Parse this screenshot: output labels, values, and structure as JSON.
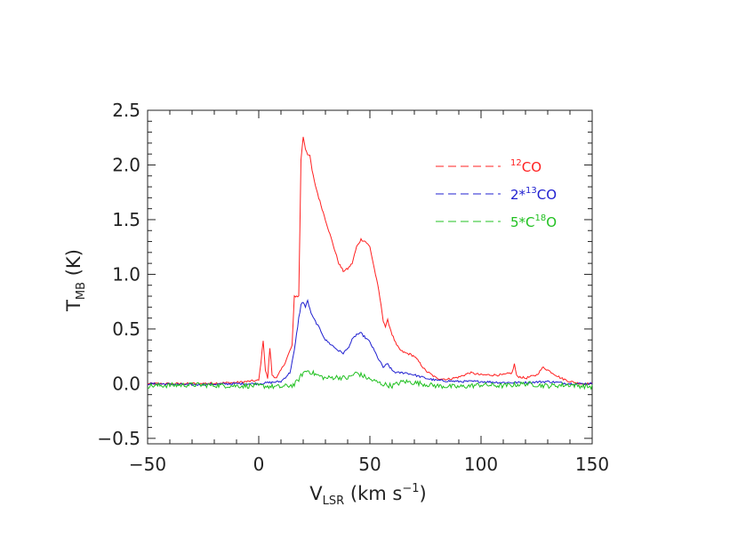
{
  "chart_data": {
    "type": "line",
    "xlabel": {
      "main": "V",
      "sub": "LSR",
      "rest": " (km s",
      "sup": "−1",
      "end": ")"
    },
    "ylabel": {
      "main": "T",
      "sub": "MB",
      "rest": " (K)"
    },
    "xlim": [
      -50,
      150
    ],
    "ylim": [
      -0.55,
      2.5
    ],
    "xticks": [
      -50,
      0,
      50,
      100,
      150
    ],
    "xtick_labels": [
      "−50",
      "0",
      "50",
      "100",
      "150"
    ],
    "yticks": [
      -0.5,
      0.0,
      0.5,
      1.0,
      1.5,
      2.0,
      2.5
    ],
    "ytick_labels": [
      "−0.5",
      "0.0",
      "0.5",
      "1.0",
      "1.5",
      "2.0",
      "2.5"
    ],
    "legend_position": "top-right",
    "series": [
      {
        "name": "12CO",
        "legend": {
          "prefix": "",
          "sup": "12",
          "text": "CO"
        },
        "color": "#ff2020",
        "x": [
          -50,
          -30,
          -10,
          0,
          1,
          2,
          3,
          4,
          5,
          6,
          8,
          12,
          15,
          16,
          17,
          18,
          19,
          20,
          21,
          22,
          23,
          24,
          25,
          27,
          30,
          33,
          36,
          38,
          40,
          42,
          44,
          46,
          48,
          50,
          52,
          54,
          56,
          57,
          58,
          60,
          62,
          64,
          66,
          68,
          70,
          72,
          75,
          80,
          85,
          90,
          95,
          100,
          105,
          110,
          114,
          115,
          116,
          118,
          120,
          125,
          128,
          132,
          136,
          140,
          145,
          150
        ],
        "y": [
          0.0,
          0.0,
          0.01,
          0.03,
          0.2,
          0.4,
          0.12,
          0.05,
          0.33,
          0.08,
          0.05,
          0.2,
          0.35,
          0.8,
          0.8,
          0.8,
          2.05,
          2.26,
          2.15,
          2.1,
          2.08,
          1.95,
          1.85,
          1.7,
          1.5,
          1.3,
          1.1,
          1.03,
          1.05,
          1.1,
          1.25,
          1.32,
          1.3,
          1.25,
          1.05,
          0.85,
          0.58,
          0.52,
          0.58,
          0.45,
          0.35,
          0.3,
          0.28,
          0.27,
          0.25,
          0.2,
          0.12,
          0.05,
          0.04,
          0.06,
          0.1,
          0.08,
          0.08,
          0.08,
          0.1,
          0.18,
          0.07,
          0.06,
          0.05,
          0.08,
          0.15,
          0.1,
          0.05,
          0.02,
          0.0,
          0.0
        ]
      },
      {
        "name": "2*13CO",
        "legend": {
          "prefix": "2*",
          "sup": "13",
          "text": "CO"
        },
        "color": "#2020d0",
        "x": [
          -50,
          -30,
          -10,
          0,
          10,
          14,
          16,
          18,
          19,
          20,
          21,
          22,
          23,
          24,
          26,
          28,
          30,
          33,
          36,
          38,
          40,
          42,
          44,
          46,
          48,
          50,
          52,
          54,
          56,
          58,
          60,
          62,
          64,
          66,
          70,
          75,
          80,
          90,
          100,
          110,
          120,
          130,
          140,
          150
        ],
        "y": [
          0.0,
          -0.01,
          0.0,
          0.0,
          0.02,
          0.1,
          0.3,
          0.6,
          0.72,
          0.75,
          0.7,
          0.76,
          0.68,
          0.62,
          0.55,
          0.48,
          0.4,
          0.35,
          0.3,
          0.28,
          0.32,
          0.4,
          0.45,
          0.46,
          0.42,
          0.38,
          0.3,
          0.22,
          0.15,
          0.18,
          0.12,
          0.1,
          0.1,
          0.1,
          0.08,
          0.05,
          0.03,
          0.02,
          0.02,
          0.01,
          0.01,
          0.02,
          0.0,
          0.0
        ]
      },
      {
        "name": "5*C18O",
        "legend": {
          "prefix": "5*C",
          "sup": "18",
          "text": "O"
        },
        "color": "#20c020",
        "x": [
          -50,
          -30,
          -10,
          0,
          10,
          16,
          18,
          20,
          22,
          24,
          26,
          30,
          35,
          40,
          44,
          46,
          50,
          55,
          60,
          65,
          70,
          80,
          90,
          100,
          110,
          120,
          130,
          140,
          150
        ],
        "y": [
          -0.02,
          -0.01,
          -0.02,
          -0.02,
          -0.03,
          -0.01,
          0.04,
          0.1,
          0.12,
          0.1,
          0.08,
          0.05,
          0.06,
          0.05,
          0.1,
          0.08,
          0.04,
          0.0,
          -0.02,
          0.02,
          0.01,
          -0.02,
          -0.03,
          -0.01,
          -0.02,
          0.0,
          -0.02,
          -0.01,
          -0.03
        ]
      }
    ]
  }
}
